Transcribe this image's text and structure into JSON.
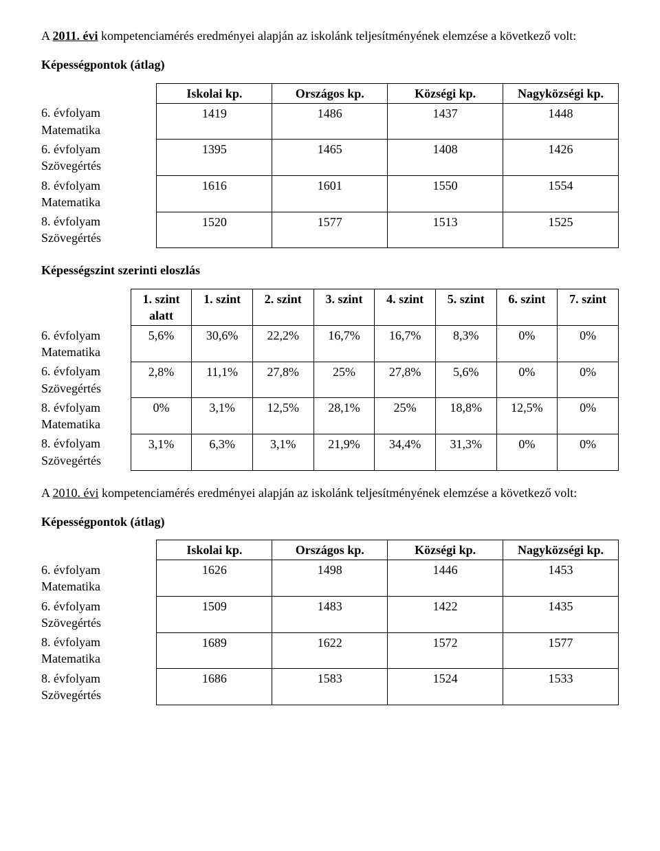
{
  "intro_2011": {
    "prefix": "A ",
    "year_underlined": "2011. évi",
    "rest": " kompetenciamérés eredményei alapján az iskolánk teljesítményének elemzése a következő volt:"
  },
  "heading_points": "Képességpontok (átlag)",
  "table1": {
    "headers": [
      "Iskolai kp.",
      "Országos kp.",
      "Községi kp.",
      "Nagyközségi kp."
    ],
    "rows": [
      {
        "label_l1": "6. évfolyam",
        "label_l2": "Matematika",
        "values": [
          "1419",
          "1486",
          "1437",
          "1448"
        ]
      },
      {
        "label_l1": "6. évfolyam",
        "label_l2": "Szövegértés",
        "values": [
          "1395",
          "1465",
          "1408",
          "1426"
        ]
      },
      {
        "label_l1": "8. évfolyam",
        "label_l2": "Matematika",
        "values": [
          "1616",
          "1601",
          "1550",
          "1554"
        ]
      },
      {
        "label_l1": "8. évfolyam",
        "label_l2": "Szövegértés",
        "values": [
          "1520",
          "1577",
          "1513",
          "1525"
        ]
      }
    ]
  },
  "heading_levels": "Képességszint szerinti eloszlás",
  "table2": {
    "headers": [
      "1. szint alatt",
      "1. szint",
      "2. szint",
      "3. szint",
      "4. szint",
      "5. szint",
      "6. szint",
      "7. szint"
    ],
    "rows": [
      {
        "label_l1": "6. évfolyam",
        "label_l2": "Matematika",
        "values": [
          "5,6%",
          "30,6%",
          "22,2%",
          "16,7%",
          "16,7%",
          "8,3%",
          "0%",
          "0%"
        ]
      },
      {
        "label_l1": "6. évfolyam",
        "label_l2": "Szövegértés",
        "values": [
          "2,8%",
          "11,1%",
          "27,8%",
          "25%",
          "27,8%",
          "5,6%",
          "0%",
          "0%"
        ]
      },
      {
        "label_l1": "8. évfolyam",
        "label_l2": "Matematika",
        "values": [
          "0%",
          "3,1%",
          "12,5%",
          "28,1%",
          "25%",
          "18,8%",
          "12,5%",
          "0%"
        ]
      },
      {
        "label_l1": "8. évfolyam",
        "label_l2": "Szövegértés",
        "values": [
          "3,1%",
          "6,3%",
          "3,1%",
          "21,9%",
          "34,4%",
          "31,3%",
          "0%",
          "0%"
        ]
      }
    ]
  },
  "intro_2010": {
    "prefix": "A ",
    "year_underlined": "2010. évi",
    "rest": " kompetenciamérés eredményei alapján az iskolánk teljesítményének elemzése a következő volt:"
  },
  "table3": {
    "headers": [
      "Iskolai kp.",
      "Országos kp.",
      "Községi kp.",
      "Nagyközségi kp."
    ],
    "rows": [
      {
        "label_l1": "6. évfolyam",
        "label_l2": "Matematika",
        "values": [
          "1626",
          "1498",
          "1446",
          "1453"
        ]
      },
      {
        "label_l1": "6. évfolyam",
        "label_l2": "Szövegértés",
        "values": [
          "1509",
          "1483",
          "1422",
          "1435"
        ]
      },
      {
        "label_l1": "8. évfolyam",
        "label_l2": "Matematika",
        "values": [
          "1689",
          "1622",
          "1572",
          "1577"
        ]
      },
      {
        "label_l1": "8. évfolyam",
        "label_l2": "Szövegértés",
        "values": [
          "1686",
          "1583",
          "1524",
          "1533"
        ]
      }
    ]
  }
}
